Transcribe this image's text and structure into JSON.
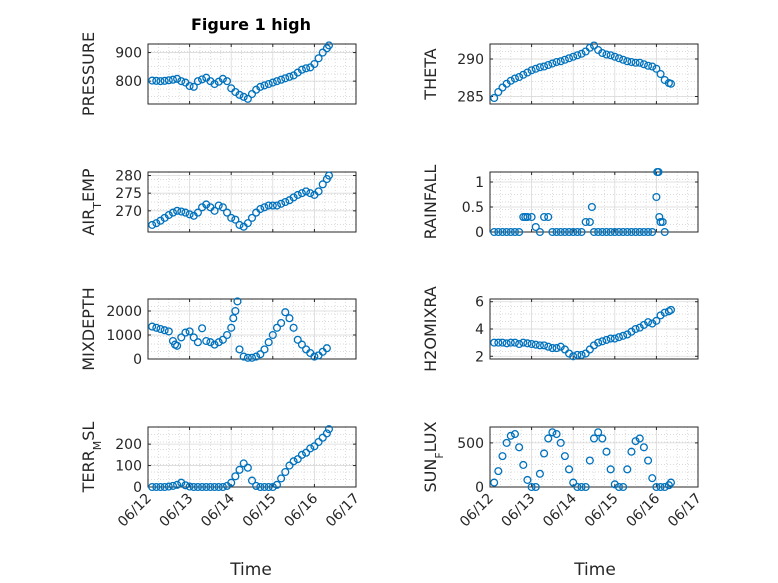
{
  "figure": {
    "title": "Figure 1 high",
    "xlabel": "Time",
    "marker": "o",
    "marker_color": "#0072BD",
    "axis_color": "#262626",
    "grid": "major solid + minor dotted"
  },
  "chart_data": [
    {
      "type": "scatter",
      "name": "pressure",
      "ylabel": "PRESSURE",
      "xlim": [
        0,
        5
      ],
      "ylim": [
        720,
        930
      ],
      "yticks": [
        800,
        900
      ],
      "ytick_labels": [
        "800",
        "900"
      ],
      "xtick_labels": [],
      "series": [
        {
          "x": [
            0.1,
            0.2,
            0.3,
            0.4,
            0.5,
            0.6,
            0.7,
            0.8,
            0.9,
            1.0,
            1.1,
            1.2,
            1.3,
            1.4,
            1.5,
            1.6,
            1.7,
            1.8,
            1.9,
            2.0,
            2.1,
            2.2,
            2.3,
            2.4,
            2.5,
            2.6,
            2.7,
            2.8,
            2.9,
            3.0,
            3.1,
            3.2,
            3.3,
            3.4,
            3.5,
            3.6,
            3.7,
            3.8,
            3.9,
            4.0,
            4.1,
            4.2,
            4.3,
            4.35
          ],
          "y": [
            802,
            801,
            800,
            801,
            803,
            805,
            808,
            800,
            795,
            783,
            780,
            800,
            806,
            812,
            800,
            790,
            798,
            808,
            800,
            775,
            762,
            752,
            745,
            738,
            755,
            770,
            780,
            785,
            790,
            795,
            800,
            805,
            810,
            815,
            820,
            830,
            840,
            845,
            848,
            860,
            880,
            900,
            915,
            925
          ]
        }
      ]
    },
    {
      "type": "scatter",
      "name": "theta",
      "ylabel": "THETA",
      "xlim": [
        0,
        5
      ],
      "ylim": [
        284,
        292
      ],
      "yticks": [
        285,
        290
      ],
      "ytick_labels": [
        "285",
        "290"
      ],
      "xtick_labels": [],
      "series": [
        {
          "x": [
            0.1,
            0.2,
            0.3,
            0.4,
            0.5,
            0.6,
            0.7,
            0.8,
            0.9,
            1.0,
            1.1,
            1.2,
            1.3,
            1.4,
            1.5,
            1.6,
            1.7,
            1.8,
            1.9,
            2.0,
            2.1,
            2.2,
            2.3,
            2.4,
            2.5,
            2.6,
            2.7,
            2.8,
            2.9,
            3.0,
            3.1,
            3.2,
            3.3,
            3.4,
            3.5,
            3.6,
            3.7,
            3.8,
            3.9,
            4.0,
            4.1,
            4.2,
            4.3,
            4.35
          ],
          "y": [
            284.8,
            285.6,
            286.2,
            286.7,
            287.1,
            287.4,
            287.6,
            287.9,
            288.2,
            288.5,
            288.7,
            288.9,
            289.0,
            289.2,
            289.4,
            289.6,
            289.7,
            289.9,
            290.1,
            290.3,
            290.5,
            290.7,
            291.0,
            291.5,
            291.8,
            291.2,
            290.8,
            290.6,
            290.5,
            290.3,
            290.1,
            289.9,
            289.7,
            289.6,
            289.5,
            289.5,
            289.3,
            289.1,
            289.0,
            288.7,
            288.0,
            287.2,
            286.8,
            286.7
          ]
        }
      ]
    },
    {
      "type": "scatter",
      "name": "air_temp",
      "ylabel": "AIR_TEMP",
      "xlim": [
        0,
        5
      ],
      "ylim": [
        264,
        281
      ],
      "yticks": [
        270,
        275,
        280
      ],
      "ytick_labels": [
        "270",
        "275",
        "280"
      ],
      "xtick_labels": [],
      "series": [
        {
          "x": [
            0.1,
            0.2,
            0.3,
            0.4,
            0.5,
            0.6,
            0.7,
            0.8,
            0.9,
            1.0,
            1.1,
            1.2,
            1.3,
            1.4,
            1.5,
            1.6,
            1.7,
            1.8,
            1.9,
            2.0,
            2.1,
            2.2,
            2.3,
            2.4,
            2.5,
            2.6,
            2.7,
            2.8,
            2.9,
            3.0,
            3.1,
            3.2,
            3.3,
            3.4,
            3.5,
            3.6,
            3.7,
            3.8,
            3.9,
            4.0,
            4.1,
            4.2,
            4.3,
            4.35
          ],
          "y": [
            266.0,
            266.5,
            267.2,
            268.0,
            268.8,
            269.5,
            270.0,
            269.8,
            269.5,
            269.0,
            268.6,
            269.5,
            271.0,
            271.8,
            271.0,
            270.0,
            271.5,
            271.0,
            269.5,
            268.0,
            267.5,
            266.0,
            265.5,
            266.5,
            268.0,
            269.5,
            270.5,
            271.0,
            271.5,
            271.5,
            271.5,
            272.0,
            272.5,
            273.0,
            273.8,
            274.5,
            275.0,
            275.5,
            275.0,
            274.5,
            275.5,
            277.5,
            279.0,
            280.0
          ]
        }
      ]
    },
    {
      "type": "scatter",
      "name": "rainfall",
      "ylabel": "RAINFALL",
      "xlim": [
        0,
        5
      ],
      "ylim": [
        0,
        1.2
      ],
      "yticks": [
        0,
        0.5,
        1
      ],
      "ytick_labels": [
        "0",
        "0.5",
        "1"
      ],
      "xtick_labels": [],
      "series": [
        {
          "x": [
            0.1,
            0.2,
            0.3,
            0.4,
            0.5,
            0.6,
            0.7,
            0.8,
            0.85,
            0.9,
            1.0,
            1.1,
            1.2,
            1.3,
            1.4,
            1.5,
            1.6,
            1.7,
            1.8,
            1.9,
            2.0,
            2.1,
            2.2,
            2.3,
            2.4,
            2.45,
            2.5,
            2.6,
            2.7,
            2.8,
            2.9,
            3.0,
            3.1,
            3.2,
            3.3,
            3.4,
            3.5,
            3.6,
            3.7,
            3.8,
            3.9,
            4.0,
            4.02,
            4.05,
            4.07,
            4.1,
            4.15,
            4.2
          ],
          "y": [
            0,
            0,
            0,
            0,
            0,
            0,
            0,
            0.3,
            0.3,
            0.3,
            0.3,
            0.1,
            0,
            0.3,
            0.3,
            0,
            0,
            0,
            0,
            0,
            0,
            0,
            0,
            0.2,
            0.2,
            0.5,
            0,
            0,
            0,
            0,
            0,
            0,
            0,
            0,
            0,
            0,
            0,
            0,
            0,
            0,
            0,
            0.7,
            1.2,
            1.2,
            0.3,
            0.2,
            0.2,
            0
          ]
        }
      ]
    },
    {
      "type": "scatter",
      "name": "mixdepth",
      "ylabel": "MIXDEPTH",
      "xlim": [
        0,
        5
      ],
      "ylim": [
        0,
        2500
      ],
      "yticks": [
        0,
        1000,
        2000
      ],
      "ytick_labels": [
        "0",
        "1000",
        "2000"
      ],
      "xtick_labels": [],
      "series": [
        {
          "x": [
            0.1,
            0.2,
            0.3,
            0.4,
            0.5,
            0.6,
            0.65,
            0.7,
            0.8,
            0.9,
            1.0,
            1.1,
            1.2,
            1.3,
            1.4,
            1.5,
            1.6,
            1.7,
            1.8,
            1.9,
            2.0,
            2.05,
            2.1,
            2.15,
            2.2,
            2.3,
            2.4,
            2.5,
            2.6,
            2.7,
            2.8,
            2.9,
            3.0,
            3.1,
            3.2,
            3.3,
            3.4,
            3.5,
            3.6,
            3.7,
            3.8,
            3.9,
            4.0,
            4.1,
            4.2,
            4.3
          ],
          "y": [
            1350,
            1300,
            1250,
            1200,
            1150,
            750,
            600,
            550,
            900,
            1100,
            1150,
            900,
            700,
            1280,
            750,
            700,
            600,
            700,
            800,
            1000,
            1300,
            1700,
            2000,
            2400,
            400,
            100,
            50,
            50,
            100,
            200,
            400,
            700,
            1000,
            1300,
            1500,
            1950,
            1700,
            1300,
            800,
            600,
            400,
            250,
            100,
            150,
            300,
            450
          ]
        }
      ]
    },
    {
      "type": "scatter",
      "name": "h2omixra",
      "ylabel": "H2OMIXRA",
      "xlim": [
        0,
        5
      ],
      "ylim": [
        1.8,
        6.2
      ],
      "yticks": [
        2,
        4,
        6
      ],
      "ytick_labels": [
        "2",
        "4",
        "6"
      ],
      "xtick_labels": [],
      "series": [
        {
          "x": [
            0.1,
            0.2,
            0.3,
            0.4,
            0.5,
            0.6,
            0.7,
            0.8,
            0.9,
            1.0,
            1.1,
            1.2,
            1.3,
            1.4,
            1.5,
            1.6,
            1.7,
            1.8,
            1.9,
            2.0,
            2.1,
            2.2,
            2.3,
            2.4,
            2.5,
            2.6,
            2.7,
            2.8,
            2.9,
            3.0,
            3.1,
            3.2,
            3.3,
            3.4,
            3.5,
            3.6,
            3.7,
            3.8,
            3.9,
            4.0,
            4.1,
            4.2,
            4.3,
            4.35
          ],
          "y": [
            3.0,
            3.0,
            3.0,
            2.95,
            3.0,
            3.0,
            2.9,
            3.0,
            2.95,
            2.9,
            2.85,
            2.8,
            2.8,
            2.7,
            2.6,
            2.6,
            2.7,
            2.5,
            2.2,
            2.0,
            2.1,
            2.1,
            2.2,
            2.5,
            2.8,
            3.0,
            3.1,
            3.2,
            3.3,
            3.3,
            3.4,
            3.5,
            3.6,
            3.8,
            4.0,
            4.1,
            4.3,
            4.5,
            4.4,
            4.6,
            5.0,
            5.2,
            5.3,
            5.4
          ]
        }
      ]
    },
    {
      "type": "scatter",
      "name": "terr_msl",
      "ylabel": "TERR_MSL",
      "xlim": [
        0,
        5
      ],
      "ylim": [
        0,
        280
      ],
      "yticks": [
        0,
        100,
        200
      ],
      "ytick_labels": [
        "0",
        "100",
        "200"
      ],
      "xtick_labels": [
        "06/12",
        "06/13",
        "06/14",
        "06/15",
        "06/16",
        "06/17"
      ],
      "series": [
        {
          "x": [
            0.1,
            0.2,
            0.3,
            0.4,
            0.5,
            0.6,
            0.7,
            0.8,
            0.9,
            1.0,
            1.1,
            1.2,
            1.3,
            1.4,
            1.5,
            1.6,
            1.7,
            1.8,
            1.9,
            2.0,
            2.1,
            2.2,
            2.3,
            2.4,
            2.5,
            2.6,
            2.7,
            2.8,
            2.9,
            3.0,
            3.1,
            3.2,
            3.3,
            3.4,
            3.5,
            3.6,
            3.7,
            3.8,
            3.9,
            4.0,
            4.1,
            4.2,
            4.3,
            4.35
          ],
          "y": [
            0,
            0,
            0,
            0,
            2,
            5,
            10,
            20,
            8,
            2,
            0,
            0,
            0,
            0,
            0,
            0,
            0,
            0,
            5,
            20,
            50,
            80,
            110,
            90,
            30,
            5,
            0,
            0,
            0,
            0,
            10,
            40,
            70,
            100,
            120,
            130,
            150,
            160,
            180,
            190,
            210,
            230,
            250,
            270
          ]
        }
      ]
    },
    {
      "type": "scatter",
      "name": "sun_flux",
      "ylabel": "SUN_FLUX",
      "xlim": [
        0,
        5
      ],
      "ylim": [
        0,
        680
      ],
      "yticks": [
        0,
        500
      ],
      "ytick_labels": [
        "0",
        "500"
      ],
      "xtick_labels": [
        "06/12",
        "06/13",
        "06/14",
        "06/15",
        "06/16",
        "06/17"
      ],
      "series": [
        {
          "x": [
            0.1,
            0.2,
            0.3,
            0.4,
            0.5,
            0.6,
            0.7,
            0.8,
            0.9,
            1.0,
            1.1,
            1.2,
            1.3,
            1.4,
            1.5,
            1.6,
            1.7,
            1.8,
            1.9,
            2.0,
            2.1,
            2.2,
            2.3,
            2.4,
            2.5,
            2.6,
            2.7,
            2.8,
            2.9,
            3.0,
            3.1,
            3.2,
            3.3,
            3.4,
            3.5,
            3.6,
            3.7,
            3.8,
            3.9,
            4.0,
            4.1,
            4.2,
            4.3,
            4.35
          ],
          "y": [
            50,
            180,
            350,
            500,
            580,
            600,
            450,
            250,
            80,
            0,
            0,
            150,
            380,
            550,
            620,
            600,
            500,
            350,
            200,
            50,
            0,
            0,
            0,
            300,
            550,
            620,
            550,
            400,
            200,
            30,
            0,
            0,
            200,
            400,
            520,
            550,
            450,
            300,
            100,
            0,
            0,
            0,
            20,
            50
          ]
        }
      ]
    }
  ]
}
